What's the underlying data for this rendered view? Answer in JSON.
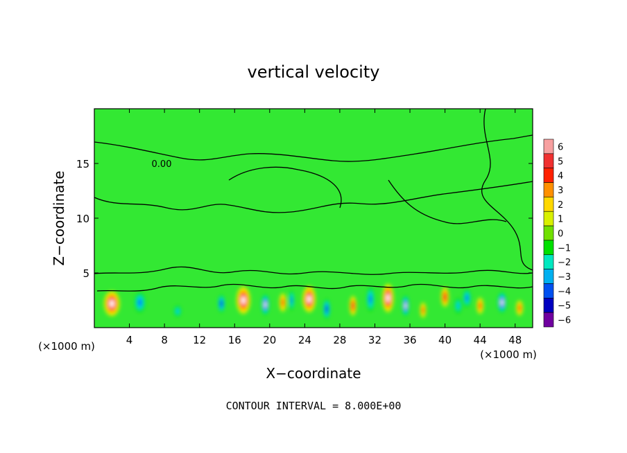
{
  "chart_data": {
    "type": "heatmap",
    "title": "vertical velocity",
    "xlabel": "X−coordinate",
    "ylabel": "Z−coordinate",
    "x_unit_left": "(×1000 m)",
    "x_unit_right": "(×1000 m)",
    "xlim": [
      0,
      50
    ],
    "ylim": [
      0,
      20
    ],
    "xticks": [
      4,
      8,
      12,
      16,
      20,
      24,
      28,
      32,
      36,
      40,
      44,
      48
    ],
    "yticks": [
      5,
      10,
      15
    ],
    "contour_label": "0.00",
    "contour_interval_text": "CONTOUR INTERVAL = 8.000E+00",
    "colorbar": {
      "levels": [
        6,
        5,
        4,
        3,
        2,
        1,
        0,
        -1,
        -2,
        -3,
        -4,
        -5,
        -6
      ],
      "labels": [
        "6",
        "5",
        "4",
        "3",
        "2",
        "1",
        "0",
        "−1",
        "−2",
        "−3",
        "−4",
        "−5",
        "−6"
      ],
      "colors": [
        "#f7a0a0",
        "#f03030",
        "#ff2000",
        "#ff9000",
        "#ffd800",
        "#d8f000",
        "#70e000",
        "#00e000",
        "#00e8c0",
        "#00b0f0",
        "#0050f0",
        "#0000c0",
        "#7000a0"
      ]
    },
    "background_color": "#33e833",
    "cells": [
      {
        "x": 2,
        "z": 2.2,
        "w": 1.8,
        "h": 2.3,
        "v": 6
      },
      {
        "x": 5.2,
        "z": 2.3,
        "w": 1.2,
        "h": 1.8,
        "v": -4
      },
      {
        "x": 9.5,
        "z": 1.5,
        "w": 0.8,
        "h": 1.0,
        "v": -3
      },
      {
        "x": 14.5,
        "z": 2.2,
        "w": 0.8,
        "h": 1.6,
        "v": -5
      },
      {
        "x": 17,
        "z": 2.5,
        "w": 1.6,
        "h": 2.5,
        "v": 6
      },
      {
        "x": 19.5,
        "z": 2.1,
        "w": 0.9,
        "h": 1.9,
        "v": -6
      },
      {
        "x": 21.5,
        "z": 2.3,
        "w": 0.8,
        "h": 1.7,
        "v": 4
      },
      {
        "x": 22.5,
        "z": 2.5,
        "w": 0.6,
        "h": 1.8,
        "v": -4
      },
      {
        "x": 24.5,
        "z": 2.6,
        "w": 1.5,
        "h": 2.4,
        "v": 6
      },
      {
        "x": 26.5,
        "z": 1.7,
        "w": 0.8,
        "h": 1.8,
        "v": -5
      },
      {
        "x": 29.5,
        "z": 2.0,
        "w": 0.8,
        "h": 1.8,
        "v": 5
      },
      {
        "x": 31.5,
        "z": 2.6,
        "w": 0.9,
        "h": 2.2,
        "v": -4
      },
      {
        "x": 33.5,
        "z": 2.7,
        "w": 1.3,
        "h": 2.6,
        "v": 6
      },
      {
        "x": 35.5,
        "z": 2.0,
        "w": 0.8,
        "h": 1.9,
        "v": -6
      },
      {
        "x": 37.5,
        "z": 1.6,
        "w": 0.7,
        "h": 1.4,
        "v": 4
      },
      {
        "x": 40,
        "z": 2.8,
        "w": 0.9,
        "h": 1.8,
        "v": 5
      },
      {
        "x": 41.5,
        "z": 2.0,
        "w": 0.8,
        "h": 1.4,
        "v": -3
      },
      {
        "x": 42.5,
        "z": 2.7,
        "w": 0.9,
        "h": 1.6,
        "v": -4
      },
      {
        "x": 44,
        "z": 2.0,
        "w": 0.8,
        "h": 1.5,
        "v": 4
      },
      {
        "x": 46.5,
        "z": 2.3,
        "w": 1.0,
        "h": 1.9,
        "v": -6
      },
      {
        "x": 48.5,
        "z": 1.8,
        "w": 0.8,
        "h": 1.4,
        "v": 4
      }
    ]
  }
}
